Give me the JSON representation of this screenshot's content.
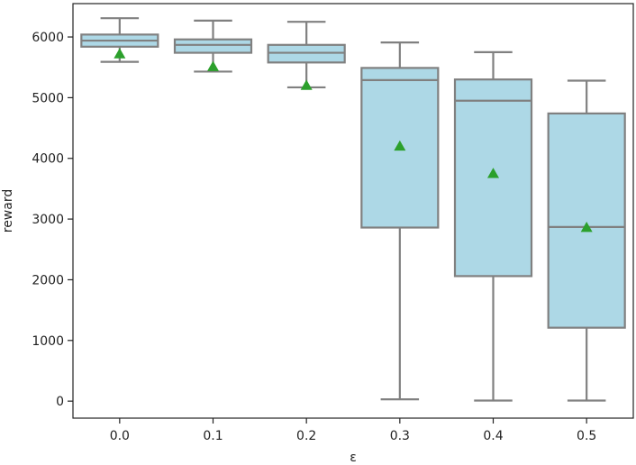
{
  "chart_data": {
    "type": "box",
    "xlabel": "ε",
    "ylabel": "reward",
    "ylim": [
      -280,
      6550
    ],
    "yticks": [
      0,
      1000,
      2000,
      3000,
      4000,
      5000,
      6000
    ],
    "categories": [
      "0.0",
      "0.1",
      "0.2",
      "0.3",
      "0.4",
      "0.5"
    ],
    "boxes": [
      {
        "category": "0.0",
        "whisker_low": 5590,
        "q1": 5840,
        "median": 5940,
        "q3": 6040,
        "whisker_high": 6310,
        "mean": 5720
      },
      {
        "category": "0.1",
        "whisker_low": 5430,
        "q1": 5740,
        "median": 5870,
        "q3": 5960,
        "whisker_high": 6270,
        "mean": 5510
      },
      {
        "category": "0.2",
        "whisker_low": 5170,
        "q1": 5580,
        "median": 5740,
        "q3": 5870,
        "whisker_high": 6250,
        "mean": 5200
      },
      {
        "category": "0.3",
        "whisker_low": 30,
        "q1": 2860,
        "median": 5290,
        "q3": 5490,
        "whisker_high": 5910,
        "mean": 4200
      },
      {
        "category": "0.4",
        "whisker_low": 10,
        "q1": 2060,
        "median": 4950,
        "q3": 5300,
        "whisker_high": 5750,
        "mean": 3750
      },
      {
        "category": "0.5",
        "whisker_low": 10,
        "q1": 1210,
        "median": 2870,
        "q3": 4740,
        "whisker_high": 5280,
        "mean": 2860
      }
    ],
    "box_color": "#add8e6",
    "line_color": "#808080",
    "mean_marker_color": "#2ca02c",
    "grid": false
  }
}
